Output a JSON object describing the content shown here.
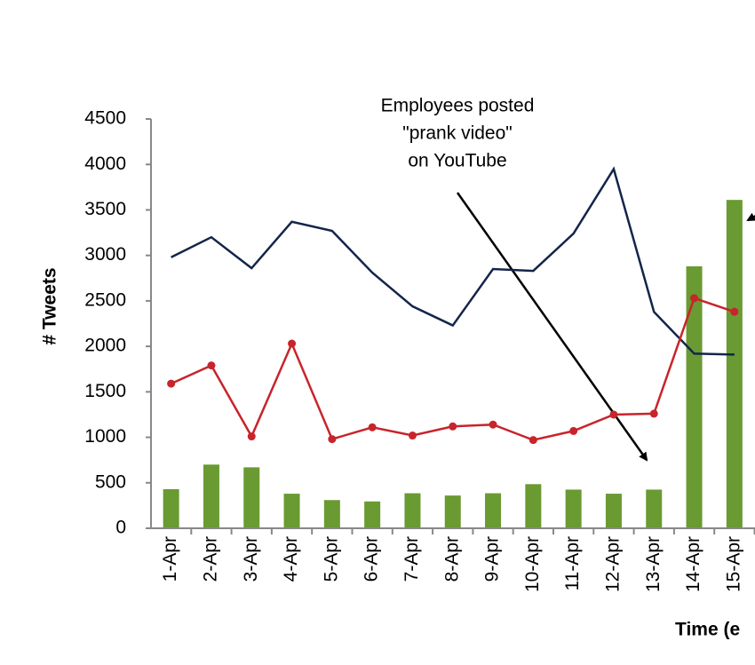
{
  "chart_data": {
    "type": "bar-line",
    "y_label": "# Tweets",
    "x_label": "Time (e",
    "annotation": [
      "Employees posted",
      "\"prank video\"",
      "on YouTube"
    ],
    "categories": [
      "1-Apr",
      "2-Apr",
      "3-Apr",
      "4-Apr",
      "5-Apr",
      "6-Apr",
      "7-Apr",
      "8-Apr",
      "9-Apr",
      "10-Apr",
      "11-Apr",
      "12-Apr",
      "13-Apr",
      "14-Apr",
      "15-Apr"
    ],
    "series": [
      {
        "type": "bar",
        "color": "#6a9a32",
        "values": [
          430,
          700,
          670,
          380,
          310,
          295,
          385,
          360,
          385,
          485,
          425,
          380,
          425,
          2880,
          3610
        ]
      },
      {
        "type": "line",
        "color": "#13254a",
        "values": [
          2980,
          3200,
          2860,
          3370,
          3270,
          2810,
          2440,
          2230,
          2850,
          2830,
          3240,
          3950,
          2380,
          1920,
          1910
        ]
      },
      {
        "type": "line",
        "color": "#c8242b",
        "markers": true,
        "values": [
          1590,
          1790,
          1010,
          2030,
          980,
          1110,
          1020,
          1120,
          1140,
          970,
          1070,
          1250,
          1260,
          2530,
          2380
        ]
      }
    ],
    "ylim": [
      0,
      4500
    ],
    "yticks": [
      0,
      500,
      1000,
      1500,
      2000,
      2500,
      3000,
      3500,
      4000,
      4500
    ]
  }
}
